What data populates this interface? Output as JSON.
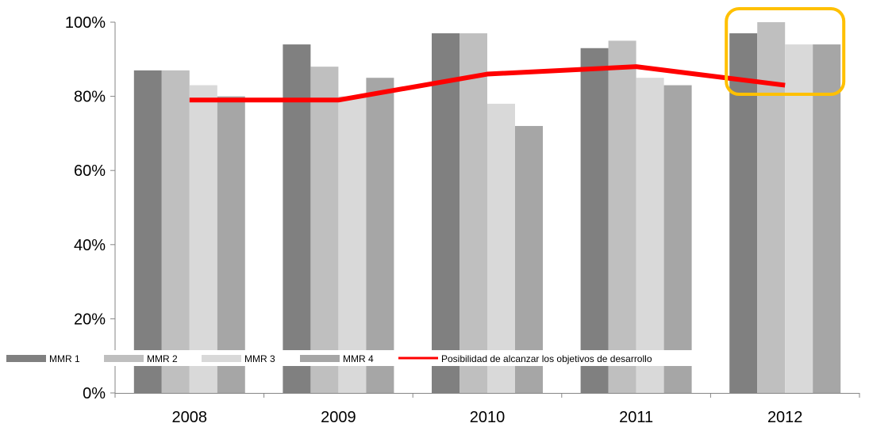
{
  "chart_data": {
    "type": "bar",
    "categories": [
      "2008",
      "2009",
      "2010",
      "2011",
      "2012"
    ],
    "series": [
      {
        "name": "MMR 1",
        "values": [
          87,
          94,
          97,
          93,
          97
        ],
        "color": "#808080"
      },
      {
        "name": "MMR 2",
        "values": [
          87,
          88,
          97,
          95,
          100
        ],
        "color": "#bfbfbf"
      },
      {
        "name": "MMR 3",
        "values": [
          83,
          80,
          78,
          85,
          94
        ],
        "color": "#d9d9d9"
      },
      {
        "name": "MMR 4",
        "values": [
          80,
          85,
          72,
          83,
          94
        ],
        "color": "#a6a6a6"
      }
    ],
    "line_series": {
      "name": "Posibilidad de alcanzar los objetivos de desarrollo",
      "values": [
        79,
        79,
        86,
        88,
        83
      ],
      "color": "#ff0000"
    },
    "y_ticks": [
      "0%",
      "20%",
      "40%",
      "60%",
      "80%",
      "100%"
    ],
    "ylim": [
      0,
      100
    ],
    "grid": false,
    "legend_position": "bottom-left",
    "highlight": {
      "category": "2012",
      "color": "#ffc000"
    }
  }
}
